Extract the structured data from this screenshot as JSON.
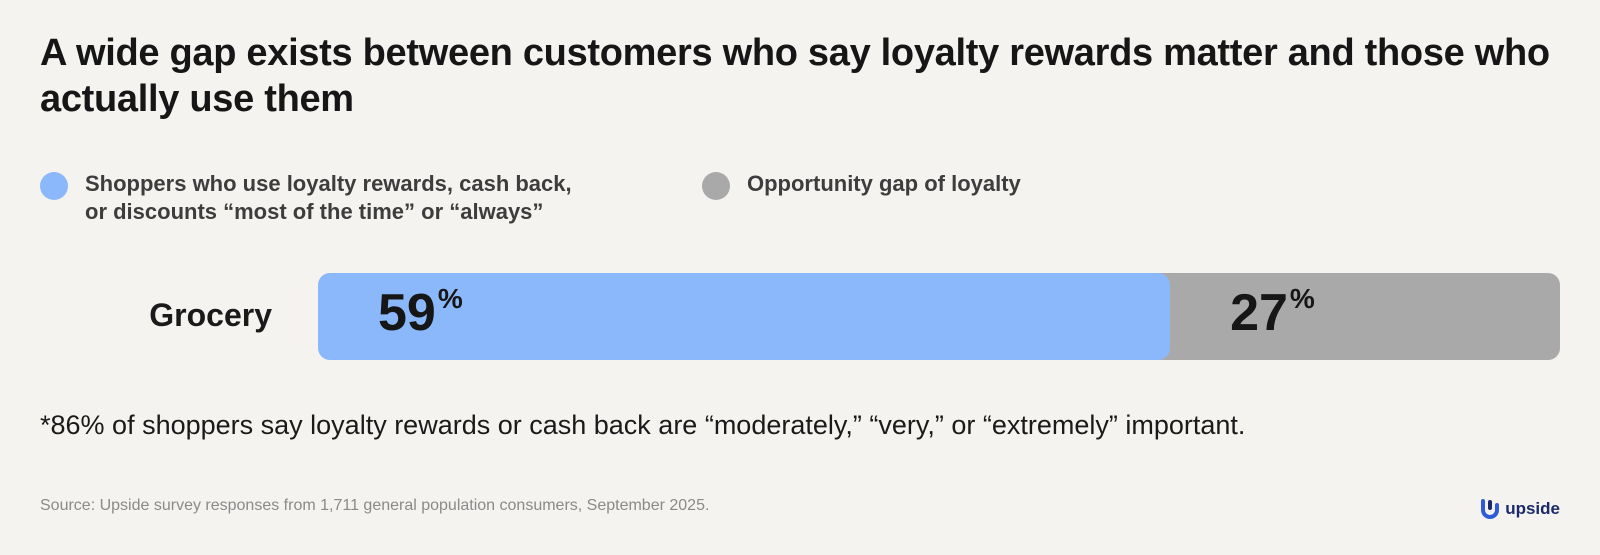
{
  "title": "A wide gap exists between customers who say loyalty rewards matter and those who actually use them",
  "legend": [
    {
      "lines": [
        "Shoppers who use loyalty rewards, cash back,",
        "or discounts “most of the time” or “always”"
      ],
      "color": "#8bb8fb"
    },
    {
      "lines": [
        "Opportunity gap of loyalty"
      ],
      "color": "#a9a9a9"
    }
  ],
  "chart_data": {
    "type": "bar",
    "orientation": "horizontal",
    "stacked": true,
    "categories": [
      "Grocery"
    ],
    "series": [
      {
        "name": "Shoppers who use loyalty rewards, cash back, or discounts “most of the time” or “always”",
        "values": [
          59
        ],
        "color": "#8bb8fb"
      },
      {
        "name": "Opportunity gap of loyalty",
        "values": [
          27
        ],
        "color": "#a9a9a9"
      }
    ],
    "value_suffix": "%",
    "xlim": [
      0,
      86
    ],
    "grid": false,
    "legend_position": "top-left"
  },
  "footnote": "*86% of shoppers say loyalty rewards or cash back are “moderately,” “very,” or “extremely” important.",
  "source": "Source: Upside survey responses from 1,711 general population consumers, September 2025.",
  "brand": {
    "name": "upside",
    "color": "#1b2a6b",
    "icon": "upside-logo-icon"
  }
}
